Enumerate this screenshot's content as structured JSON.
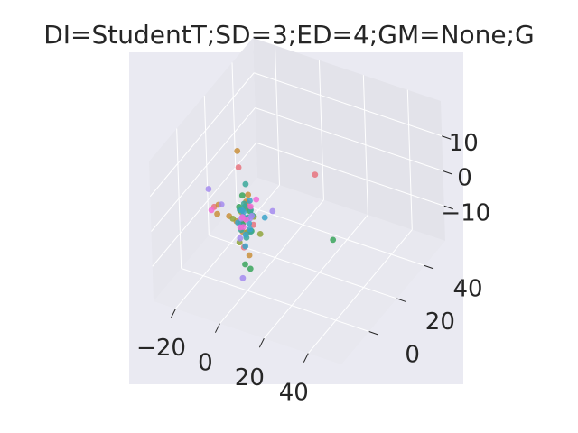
{
  "chart_data": {
    "type": "scatter",
    "title": "DI=StudentT;SD=3;ED=4;GM=None;G",
    "xlabel": "",
    "ylabel": "",
    "zlabel": "",
    "xlim": [
      -30,
      55
    ],
    "ylim": [
      -20,
      55
    ],
    "zlim": [
      -20,
      20
    ],
    "x_ticks": [
      "−20",
      "0",
      "20",
      "40"
    ],
    "x_tick_values": [
      -20,
      0,
      20,
      40
    ],
    "y_ticks": [
      "0",
      "20",
      "40"
    ],
    "y_tick_values": [
      0,
      20,
      40
    ],
    "z_ticks": [
      "10",
      "0",
      "−10"
    ],
    "z_tick_values": [
      10,
      0,
      -10
    ],
    "grid": true,
    "legend": "none",
    "series": [
      {
        "color": "#e8737e",
        "points": [
          [
            -1,
            -2,
            16
          ],
          [
            1,
            0,
            4
          ],
          [
            -2,
            1,
            -2
          ],
          [
            2,
            -1,
            6
          ],
          [
            0,
            2,
            -4
          ],
          [
            26,
            10,
            14
          ],
          [
            -14,
            0,
            1
          ],
          [
            3,
            1,
            -1
          ],
          [
            -1,
            3,
            2
          ],
          [
            1,
            -3,
            -6
          ]
        ]
      },
      {
        "color": "#c98f3b",
        "points": [
          [
            -2,
            -1,
            20
          ],
          [
            -12,
            0,
            2
          ],
          [
            -14,
            2,
            -2
          ],
          [
            3,
            -2,
            9
          ],
          [
            -4,
            0,
            -1
          ],
          [
            1,
            2,
            3
          ],
          [
            -2,
            1,
            -4
          ],
          [
            -6,
            -2,
            1
          ],
          [
            2,
            -1,
            -9
          ],
          [
            0,
            1,
            5
          ]
        ]
      },
      {
        "color": "#8fa53c",
        "points": [
          [
            -5,
            -1,
            0
          ],
          [
            6,
            1,
            -3
          ],
          [
            -3,
            2,
            1
          ],
          [
            2,
            -2,
            -2
          ],
          [
            0,
            1,
            3
          ],
          [
            -1,
            -3,
            -5
          ],
          [
            4,
            0,
            2
          ],
          [
            -2,
            2,
            -1
          ]
        ]
      },
      {
        "color": "#3aa55c",
        "points": [
          [
            28,
            18,
            -8
          ],
          [
            0,
            -1,
            -12
          ],
          [
            1,
            2,
            2
          ],
          [
            -2,
            -1,
            4
          ],
          [
            2,
            1,
            -3
          ],
          [
            -1,
            0,
            7
          ],
          [
            0,
            -2,
            0
          ],
          [
            -3,
            1,
            -2
          ],
          [
            1,
            1,
            -14
          ]
        ]
      },
      {
        "color": "#39a89a",
        "points": [
          [
            0,
            1,
            10
          ],
          [
            1,
            0,
            1
          ],
          [
            -1,
            -1,
            -1
          ],
          [
            2,
            1,
            3
          ],
          [
            -2,
            0,
            -3
          ],
          [
            0,
            2,
            0
          ],
          [
            1,
            -2,
            6
          ],
          [
            -3,
            1,
            2
          ],
          [
            3,
            -1,
            -2
          ],
          [
            0,
            0,
            4
          ],
          [
            -1,
            2,
            -6
          ],
          [
            2,
            2,
            1
          ]
        ]
      },
      {
        "color": "#3ba3c9",
        "points": [
          [
            -1,
            0,
            1
          ],
          [
            1,
            1,
            -1
          ],
          [
            0,
            -1,
            3
          ],
          [
            2,
            0,
            -2
          ],
          [
            -2,
            1,
            2
          ],
          [
            0,
            0,
            -4
          ],
          [
            7,
            3,
            1
          ],
          [
            -2,
            -2,
            0
          ],
          [
            1,
            2,
            5
          ],
          [
            -1,
            1,
            -8
          ]
        ]
      },
      {
        "color": "#a58bef",
        "points": [
          [
            -17,
            1,
            5
          ],
          [
            10,
            4,
            3
          ],
          [
            -3,
            2,
            -1
          ],
          [
            0,
            -3,
            -15
          ],
          [
            3,
            0,
            2
          ],
          [
            -2,
            -1,
            -5
          ],
          [
            1,
            2,
            0
          ],
          [
            -10,
            -1,
            3
          ]
        ]
      },
      {
        "color": "#f06bd8",
        "points": [
          [
            -14,
            -2,
            1
          ],
          [
            2,
            1,
            4
          ],
          [
            -1,
            0,
            -2
          ],
          [
            1,
            -1,
            1
          ],
          [
            4,
            2,
            6
          ],
          [
            -3,
            1,
            -3
          ],
          [
            0,
            -2,
            2
          ]
        ]
      }
    ]
  }
}
